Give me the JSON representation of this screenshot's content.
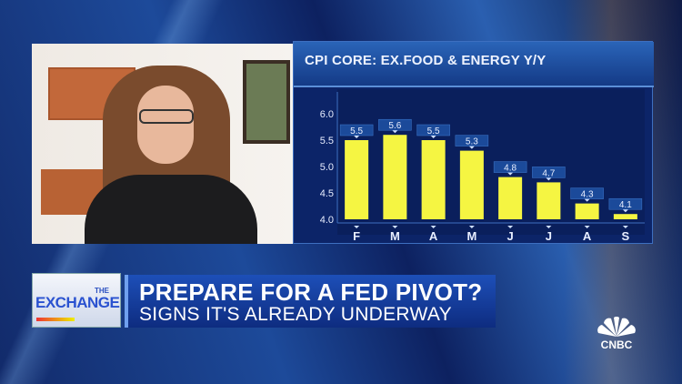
{
  "chart_data": {
    "type": "bar",
    "title": "CPI CORE: EX.FOOD & ENERGY Y/Y",
    "categories": [
      "F",
      "M",
      "A",
      "M",
      "J",
      "J",
      "A",
      "S"
    ],
    "values": [
      5.5,
      5.6,
      5.5,
      5.3,
      4.8,
      4.7,
      4.3,
      4.1
    ],
    "data_labels": [
      "5.5",
      "5.6",
      "5.5",
      "5.3",
      "4.8",
      "4.7",
      "4.3",
      "4.1"
    ],
    "yticks": [
      "6.0",
      "5.5",
      "5.0",
      "4.5",
      "4.0"
    ],
    "ylim": [
      4.0,
      6.0
    ],
    "grid": false,
    "bar_color": "#f5f542"
  },
  "banner": {
    "show_the": "THE",
    "show_name": "EXCHANGE",
    "headline": "PREPARE FOR A FED PIVOT?",
    "subheadline": "SIGNS IT'S ALREADY UNDERWAY"
  },
  "network": {
    "logo": "CNBC",
    "icon": "peacock-icon"
  }
}
